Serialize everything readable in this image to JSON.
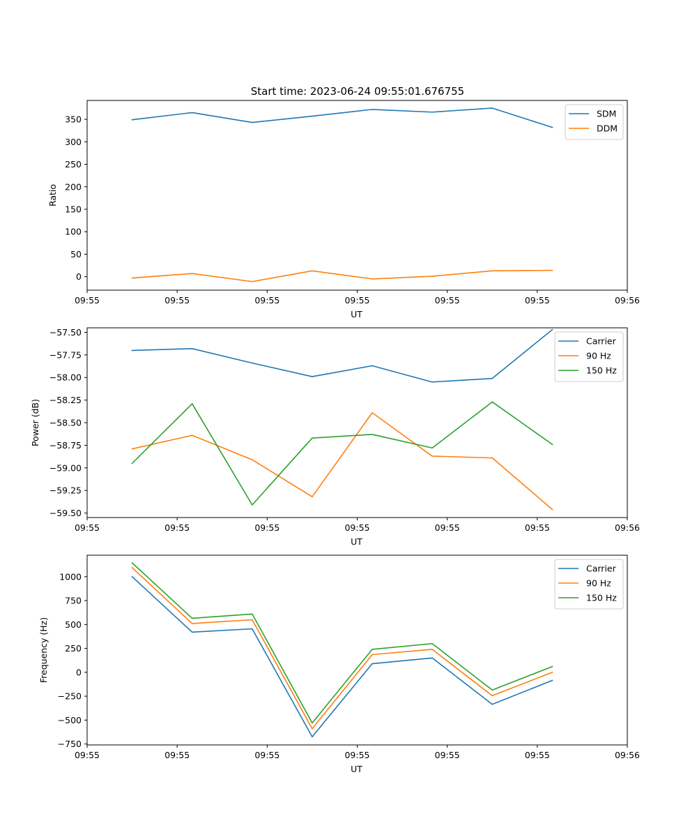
{
  "figure": {
    "title": "Start time: 2023-06-24 09:55:01.676755"
  },
  "colors": {
    "blue": "#1f77b4",
    "orange": "#ff7f0e",
    "green": "#2ca02c"
  },
  "chart_data": [
    {
      "type": "line",
      "title": "Start time: 2023-06-24 09:55:01.676755",
      "xlabel": "UT",
      "ylabel": "Ratio",
      "x": [
        1,
        2,
        3,
        4,
        5,
        6,
        7,
        8
      ],
      "xlim": [
        0.25,
        9.25
      ],
      "xticks": [
        0.25,
        1.75,
        3.25,
        4.75,
        6.25,
        7.75,
        9.25
      ],
      "xtick_labels": [
        "09:55",
        "09:55",
        "09:55",
        "09:55",
        "09:55",
        "09:55",
        "09:56"
      ],
      "ylim": [
        -30,
        392
      ],
      "yticks": [
        0,
        50,
        100,
        150,
        200,
        250,
        300,
        350
      ],
      "ytick_labels": [
        "0",
        "50",
        "100",
        "150",
        "200",
        "250",
        "300",
        "350"
      ],
      "legend_position": "top-right",
      "series": [
        {
          "name": "SDM",
          "color": "#1f77b4",
          "values": [
            349,
            365,
            343,
            357,
            372,
            366,
            375,
            332
          ]
        },
        {
          "name": "DDM",
          "color": "#ff7f0e",
          "values": [
            -3,
            7,
            -11,
            13,
            -5,
            1,
            13,
            14
          ]
        }
      ]
    },
    {
      "type": "line",
      "title": "",
      "xlabel": "UT",
      "ylabel": "Power (dB)",
      "x": [
        1,
        2,
        3,
        4,
        5,
        6,
        7,
        8
      ],
      "xlim": [
        0.25,
        9.25
      ],
      "xticks": [
        0.25,
        1.75,
        3.25,
        4.75,
        6.25,
        7.75,
        9.25
      ],
      "xtick_labels": [
        "09:55",
        "09:55",
        "09:55",
        "09:55",
        "09:55",
        "09:55",
        "09:56"
      ],
      "ylim": [
        -59.55,
        -57.45
      ],
      "yticks": [
        -59.5,
        -59.25,
        -59.0,
        -58.75,
        -58.5,
        -58.25,
        -58.0,
        -57.75,
        -57.5
      ],
      "ytick_labels": [
        "−59.50",
        "−59.25",
        "−59.00",
        "−58.75",
        "−58.50",
        "−58.25",
        "−58.00",
        "−57.75",
        "−57.50"
      ],
      "legend_position": "top-right",
      "series": [
        {
          "name": "Carrier",
          "color": "#1f77b4",
          "values": [
            -57.7,
            -57.68,
            -57.84,
            -57.99,
            -57.87,
            -58.05,
            -58.01,
            -57.47
          ]
        },
        {
          "name": "90 Hz",
          "color": "#ff7f0e",
          "values": [
            -58.79,
            -58.64,
            -58.91,
            -59.32,
            -58.39,
            -58.87,
            -58.89,
            -59.46
          ]
        },
        {
          "name": "150 Hz",
          "color": "#2ca02c",
          "values": [
            -58.95,
            -58.29,
            -59.41,
            -58.67,
            -58.63,
            -58.78,
            -58.27,
            -58.74
          ]
        }
      ]
    },
    {
      "type": "line",
      "title": "",
      "xlabel": "UT",
      "ylabel": "Frequency (Hz)",
      "x": [
        1,
        2,
        3,
        4,
        5,
        6,
        7,
        8
      ],
      "xlim": [
        0.25,
        9.25
      ],
      "xticks": [
        0.25,
        1.75,
        3.25,
        4.75,
        6.25,
        7.75,
        9.25
      ],
      "xtick_labels": [
        "09:55",
        "09:55",
        "09:55",
        "09:55",
        "09:55",
        "09:55",
        "09:56"
      ],
      "ylim": [
        -760,
        1225
      ],
      "yticks": [
        -750,
        -500,
        -250,
        0,
        250,
        500,
        750,
        1000
      ],
      "ytick_labels": [
        "−750",
        "−500",
        "−250",
        "0",
        "250",
        "500",
        "750",
        "1000"
      ],
      "legend_position": "top-right",
      "series": [
        {
          "name": "Carrier",
          "color": "#1f77b4",
          "values": [
            1000,
            420,
            455,
            -675,
            90,
            150,
            -335,
            -85
          ]
        },
        {
          "name": "90 Hz",
          "color": "#ff7f0e",
          "values": [
            1095,
            510,
            550,
            -590,
            185,
            240,
            -245,
            0
          ]
        },
        {
          "name": "150 Hz",
          "color": "#2ca02c",
          "values": [
            1145,
            565,
            610,
            -530,
            240,
            300,
            -185,
            60
          ]
        }
      ]
    }
  ]
}
